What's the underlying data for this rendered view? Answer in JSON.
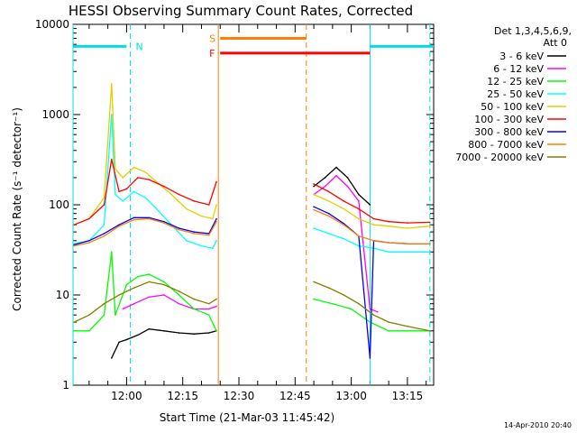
{
  "chart_data": {
    "type": "line",
    "title": "HESSI Observing Summary Count Rates, Corrected",
    "xlabel": "Start Time (21-Mar-03 11:45:42)",
    "ylabel": "Corrected Count Rate (s⁻¹ detector⁻¹)",
    "yscale": "log",
    "ylim": [
      1,
      10000
    ],
    "xlim": [
      "11:45:42",
      "13:22:00"
    ],
    "x_tick_labels": [
      "12:00",
      "12:15",
      "12:30",
      "12:45",
      "13:00",
      "13:15"
    ],
    "y_tick_labels": [
      "1",
      "10",
      "100",
      "1000",
      "10000"
    ],
    "legend_header": [
      "Det 1,3,4,5,6,9,",
      "Att 0"
    ],
    "footer_stamp": "14-Apr-2010 20:40",
    "flags": [
      {
        "code": "N",
        "label": "N",
        "color": "#00e0e0",
        "style": "solid",
        "segments": [
          [
            "11:45:42",
            "12:00"
          ],
          [
            "13:05",
            "13:22"
          ]
        ],
        "y": 5700
      },
      {
        "code": "S",
        "label": "S",
        "color": "#ff8000",
        "style": "solid",
        "segments": [
          [
            "12:25",
            "12:48"
          ]
        ],
        "y": 7000
      },
      {
        "code": "F",
        "label": "F",
        "color": "#ff0000",
        "style": "solid",
        "segments": [
          [
            "12:25",
            "13:05"
          ]
        ],
        "y": 4800
      }
    ],
    "vertical_markers": [
      {
        "time": "11:45:42",
        "color": "#00e0e0",
        "style": "solid"
      },
      {
        "time": "12:01",
        "color": "#00e0e0",
        "style": "dashed"
      },
      {
        "time": "12:24.5",
        "color": "#ff8000",
        "style": "solid"
      },
      {
        "time": "12:48",
        "color": "#ff8000",
        "style": "dashed"
      },
      {
        "time": "13:05",
        "color": "#00e0e0",
        "style": "solid"
      },
      {
        "time": "13:21",
        "color": "#00e0e0",
        "style": "dashed"
      }
    ],
    "series": [
      {
        "name": "3 - 6 keV",
        "color": "#000000",
        "points": [
          [
            "11:56",
            2
          ],
          [
            "11:58",
            3
          ],
          [
            "12:00",
            3.2
          ],
          [
            "12:03",
            3.6
          ],
          [
            "12:06",
            4.2
          ],
          [
            "12:10",
            4
          ],
          [
            "12:14",
            3.8
          ],
          [
            "12:18",
            3.7
          ],
          [
            "12:22",
            3.8
          ],
          [
            "12:24",
            4
          ],
          [
            "12:50",
            160
          ],
          [
            "12:53",
            200
          ],
          [
            "12:56",
            260
          ],
          [
            "12:59",
            200
          ],
          [
            "13:02",
            130
          ],
          [
            "13:05",
            100
          ]
        ]
      },
      {
        "name": "6 - 12 keV",
        "color": "#ff00ff",
        "points": [
          [
            "11:59",
            7
          ],
          [
            "12:02",
            8
          ],
          [
            "12:06",
            9.5
          ],
          [
            "12:10",
            10
          ],
          [
            "12:14",
            8
          ],
          [
            "12:18",
            7
          ],
          [
            "12:22",
            7
          ],
          [
            "12:24",
            7.5
          ],
          [
            "12:50",
            130
          ],
          [
            "12:53",
            160
          ],
          [
            "12:56",
            210
          ],
          [
            "12:59",
            160
          ],
          [
            "13:02",
            110
          ],
          [
            "13:05",
            7
          ],
          [
            "13:07",
            6.5
          ]
        ]
      },
      {
        "name": "12 - 25 keV",
        "color": "#00ff00",
        "points": [
          [
            "11:46",
            4
          ],
          [
            "11:50",
            4
          ],
          [
            "11:54",
            6
          ],
          [
            "11:56",
            30
          ],
          [
            "11:57",
            6
          ],
          [
            "12:00",
            13
          ],
          [
            "12:03",
            16
          ],
          [
            "12:06",
            17
          ],
          [
            "12:10",
            14
          ],
          [
            "12:14",
            10
          ],
          [
            "12:18",
            7
          ],
          [
            "12:22",
            6
          ],
          [
            "12:24",
            4
          ],
          [
            "12:50",
            9
          ],
          [
            "12:55",
            8
          ],
          [
            "13:00",
            7
          ],
          [
            "13:05",
            5
          ],
          [
            "13:10",
            4
          ],
          [
            "13:15",
            4
          ],
          [
            "13:21",
            4
          ]
        ]
      },
      {
        "name": "25 - 50 keV",
        "color": "#00ffff",
        "points": [
          [
            "11:46",
            37
          ],
          [
            "11:50",
            40
          ],
          [
            "11:54",
            60
          ],
          [
            "11:56",
            1000
          ],
          [
            "11:57",
            130
          ],
          [
            "11:59",
            110
          ],
          [
            "12:02",
            140
          ],
          [
            "12:05",
            120
          ],
          [
            "12:08",
            90
          ],
          [
            "12:12",
            60
          ],
          [
            "12:16",
            40
          ],
          [
            "12:20",
            35
          ],
          [
            "12:23",
            33
          ],
          [
            "12:24",
            40
          ],
          [
            "12:50",
            55
          ],
          [
            "12:54",
            48
          ],
          [
            "12:58",
            42
          ],
          [
            "13:02",
            35
          ],
          [
            "13:06",
            33
          ],
          [
            "13:10",
            30
          ],
          [
            "13:15",
            30
          ],
          [
            "13:21",
            30
          ]
        ]
      },
      {
        "name": "50 - 100 keV",
        "color": "#e0d000",
        "points": [
          [
            "11:46",
            60
          ],
          [
            "11:50",
            70
          ],
          [
            "11:54",
            120
          ],
          [
            "11:56",
            2200
          ],
          [
            "11:57",
            250
          ],
          [
            "11:59",
            200
          ],
          [
            "12:02",
            260
          ],
          [
            "12:05",
            230
          ],
          [
            "12:08",
            180
          ],
          [
            "12:12",
            130
          ],
          [
            "12:16",
            90
          ],
          [
            "12:20",
            75
          ],
          [
            "12:23",
            70
          ],
          [
            "12:24",
            100
          ],
          [
            "12:50",
            130
          ],
          [
            "12:54",
            110
          ],
          [
            "12:58",
            90
          ],
          [
            "13:02",
            70
          ],
          [
            "13:06",
            60
          ],
          [
            "13:10",
            58
          ],
          [
            "13:15",
            55
          ],
          [
            "13:21",
            58
          ]
        ]
      },
      {
        "name": "100 - 300 keV",
        "color": "#ff0000",
        "points": [
          [
            "11:46",
            60
          ],
          [
            "11:50",
            70
          ],
          [
            "11:54",
            100
          ],
          [
            "11:56",
            320
          ],
          [
            "11:58",
            140
          ],
          [
            "12:00",
            150
          ],
          [
            "12:03",
            200
          ],
          [
            "12:06",
            190
          ],
          [
            "12:10",
            160
          ],
          [
            "12:14",
            130
          ],
          [
            "12:18",
            110
          ],
          [
            "12:22",
            100
          ],
          [
            "12:24",
            180
          ],
          [
            "12:50",
            170
          ],
          [
            "12:54",
            140
          ],
          [
            "12:58",
            110
          ],
          [
            "13:02",
            90
          ],
          [
            "13:06",
            70
          ],
          [
            "13:10",
            65
          ],
          [
            "13:15",
            63
          ],
          [
            "13:21",
            64
          ]
        ]
      },
      {
        "name": "300 - 800 keV",
        "color": "#0000ff",
        "points": [
          [
            "11:46",
            36
          ],
          [
            "11:50",
            40
          ],
          [
            "11:54",
            48
          ],
          [
            "11:58",
            60
          ],
          [
            "12:02",
            72
          ],
          [
            "12:06",
            72
          ],
          [
            "12:10",
            65
          ],
          [
            "12:14",
            55
          ],
          [
            "12:18",
            50
          ],
          [
            "12:22",
            48
          ],
          [
            "12:24",
            70
          ],
          [
            "12:50",
            95
          ],
          [
            "12:54",
            80
          ],
          [
            "12:58",
            62
          ],
          [
            "13:02",
            45
          ],
          [
            "13:05",
            2
          ],
          [
            "13:06",
            40
          ],
          [
            "13:10",
            38
          ],
          [
            "13:15",
            37
          ],
          [
            "13:21",
            37
          ]
        ]
      },
      {
        "name": "800 - 7000 keV",
        "color": "#ff8000",
        "points": [
          [
            "11:46",
            35
          ],
          [
            "11:50",
            38
          ],
          [
            "11:54",
            45
          ],
          [
            "11:58",
            58
          ],
          [
            "12:02",
            68
          ],
          [
            "12:06",
            70
          ],
          [
            "12:10",
            63
          ],
          [
            "12:14",
            53
          ],
          [
            "12:18",
            48
          ],
          [
            "12:22",
            46
          ],
          [
            "12:24",
            65
          ],
          [
            "12:50",
            88
          ],
          [
            "12:54",
            75
          ],
          [
            "12:58",
            60
          ],
          [
            "13:02",
            45
          ],
          [
            "13:06",
            40
          ],
          [
            "13:10",
            38
          ],
          [
            "13:15",
            37
          ],
          [
            "13:21",
            37
          ]
        ]
      },
      {
        "name": "7000 - 20000 keV",
        "color": "#808000",
        "points": [
          [
            "11:46",
            5
          ],
          [
            "11:50",
            6
          ],
          [
            "11:54",
            8
          ],
          [
            "11:58",
            10
          ],
          [
            "12:02",
            12
          ],
          [
            "12:06",
            14
          ],
          [
            "12:10",
            13
          ],
          [
            "12:14",
            11
          ],
          [
            "12:18",
            9
          ],
          [
            "12:22",
            8
          ],
          [
            "12:24",
            9
          ],
          [
            "12:50",
            14
          ],
          [
            "12:54",
            12
          ],
          [
            "12:58",
            10
          ],
          [
            "13:02",
            8
          ],
          [
            "13:06",
            6
          ],
          [
            "13:10",
            5
          ],
          [
            "13:15",
            4.5
          ],
          [
            "13:21",
            4
          ]
        ]
      }
    ]
  }
}
